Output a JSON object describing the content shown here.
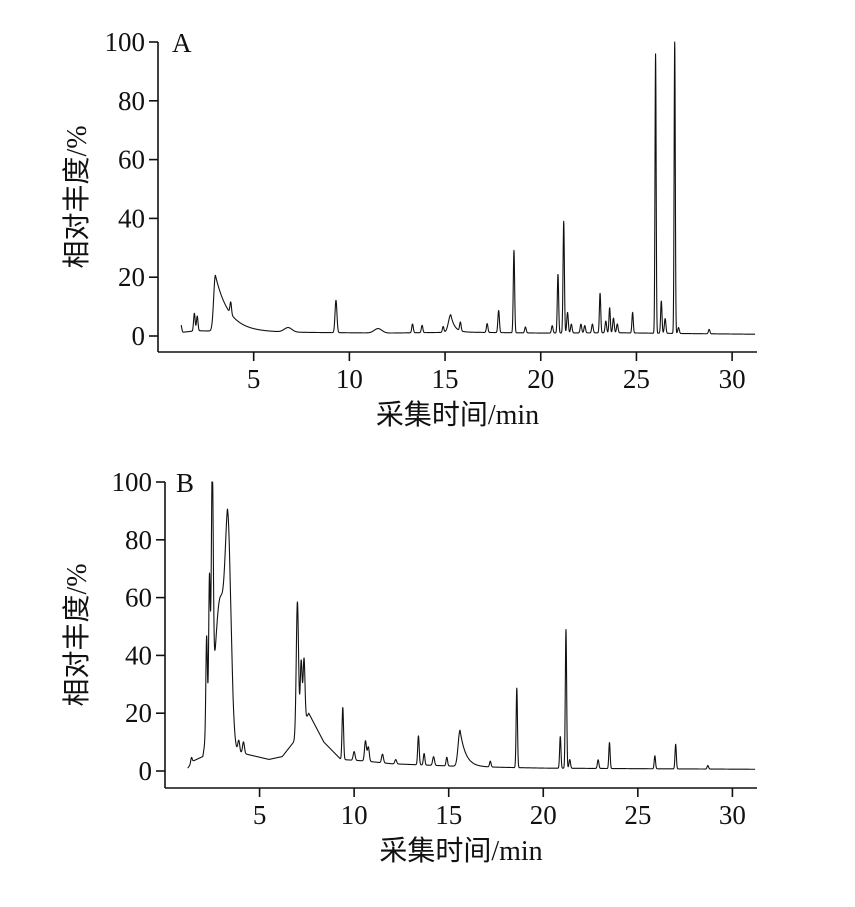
{
  "chart_data": [
    {
      "type": "line",
      "panel_label": "A",
      "xlabel": "采集时间/min",
      "ylabel": "相对丰度/%",
      "xlim": [
        0,
        31.3
      ],
      "ylim": [
        0,
        100
      ],
      "x_ticks": [
        5,
        10,
        15,
        20,
        25,
        30
      ],
      "y_ticks": [
        0,
        20,
        40,
        60,
        80,
        100
      ],
      "baseline": [
        [
          1.2,
          1.2
        ],
        [
          2.0,
          1.8
        ],
        [
          4.0,
          1.5
        ],
        [
          8.0,
          1.2
        ],
        [
          12.0,
          1.0
        ],
        [
          16.0,
          1.3
        ],
        [
          20.0,
          1.0
        ],
        [
          24.0,
          1.1
        ],
        [
          28.0,
          0.8
        ],
        [
          31.2,
          0.6
        ]
      ],
      "peaks": [
        {
          "x": 1.2,
          "y": 2.5,
          "w": 0.04
        },
        {
          "x": 1.9,
          "y": 6,
          "w": 0.04
        },
        {
          "x": 2.05,
          "y": 5,
          "w": 0.04
        },
        {
          "x": 3.0,
          "y": 19,
          "w": 0.09,
          "tail": 0.7
        },
        {
          "x": 3.8,
          "y": 4,
          "w": 0.04
        },
        {
          "x": 6.8,
          "y": 1.5,
          "w": 0.2
        },
        {
          "x": 9.3,
          "y": 11,
          "w": 0.05
        },
        {
          "x": 11.5,
          "y": 1.5,
          "w": 0.2
        },
        {
          "x": 13.3,
          "y": 3,
          "w": 0.04
        },
        {
          "x": 13.8,
          "y": 2.5,
          "w": 0.04
        },
        {
          "x": 14.9,
          "y": 2,
          "w": 0.04
        },
        {
          "x": 15.3,
          "y": 6,
          "w": 0.12,
          "tail": 0.2
        },
        {
          "x": 15.8,
          "y": 3,
          "w": 0.04
        },
        {
          "x": 17.2,
          "y": 3,
          "w": 0.04
        },
        {
          "x": 17.8,
          "y": 7.5,
          "w": 0.04
        },
        {
          "x": 18.6,
          "y": 28,
          "w": 0.035
        },
        {
          "x": 19.2,
          "y": 2,
          "w": 0.04
        },
        {
          "x": 20.6,
          "y": 2.5,
          "w": 0.04
        },
        {
          "x": 20.9,
          "y": 20,
          "w": 0.035
        },
        {
          "x": 21.2,
          "y": 38,
          "w": 0.035
        },
        {
          "x": 21.4,
          "y": 7,
          "w": 0.04
        },
        {
          "x": 21.6,
          "y": 3,
          "w": 0.04
        },
        {
          "x": 22.1,
          "y": 3,
          "w": 0.04
        },
        {
          "x": 22.3,
          "y": 2.5,
          "w": 0.04
        },
        {
          "x": 22.7,
          "y": 3,
          "w": 0.04
        },
        {
          "x": 23.1,
          "y": 13.5,
          "w": 0.035
        },
        {
          "x": 23.4,
          "y": 4,
          "w": 0.04
        },
        {
          "x": 23.6,
          "y": 8.5,
          "w": 0.035
        },
        {
          "x": 23.8,
          "y": 5,
          "w": 0.04
        },
        {
          "x": 24.0,
          "y": 3,
          "w": 0.04
        },
        {
          "x": 24.8,
          "y": 7,
          "w": 0.035
        },
        {
          "x": 26.0,
          "y": 95,
          "w": 0.03
        },
        {
          "x": 26.3,
          "y": 11,
          "w": 0.035
        },
        {
          "x": 26.5,
          "y": 5,
          "w": 0.04
        },
        {
          "x": 27.0,
          "y": 100,
          "w": 0.03
        },
        {
          "x": 27.2,
          "y": 2,
          "w": 0.04
        },
        {
          "x": 28.8,
          "y": 1.5,
          "w": 0.04
        }
      ]
    },
    {
      "type": "line",
      "panel_label": "B",
      "xlabel": "采集时间/min",
      "ylabel": "相对丰度/%",
      "xlim": [
        0,
        31.3
      ],
      "ylim": [
        0,
        100
      ],
      "x_ticks": [
        5,
        10,
        15,
        20,
        25,
        30
      ],
      "y_ticks": [
        0,
        20,
        40,
        60,
        80,
        100
      ],
      "baseline": [
        [
          1.2,
          1.0
        ],
        [
          1.5,
          3.5
        ],
        [
          2.0,
          5.0
        ],
        [
          2.4,
          22
        ],
        [
          3.3,
          25
        ],
        [
          3.45,
          12
        ],
        [
          3.6,
          7
        ],
        [
          4.2,
          6
        ],
        [
          5.5,
          4
        ],
        [
          6.2,
          5
        ],
        [
          6.8,
          10
        ],
        [
          7.6,
          20
        ],
        [
          8.4,
          10
        ],
        [
          9.3,
          4
        ],
        [
          10.5,
          3.5
        ],
        [
          12.0,
          2.5
        ],
        [
          14.0,
          2.0
        ],
        [
          16.0,
          1.5
        ],
        [
          20.0,
          1.0
        ],
        [
          25.0,
          0.8
        ],
        [
          31.2,
          0.6
        ]
      ],
      "peaks": [
        {
          "x": 1.4,
          "y": 2,
          "w": 0.04
        },
        {
          "x": 2.2,
          "y": 33,
          "w": 0.04
        },
        {
          "x": 2.35,
          "y": 46,
          "w": 0.04
        },
        {
          "x": 2.5,
          "y": 78,
          "w": 0.05
        },
        {
          "x": 2.9,
          "y": 35,
          "w": 0.22
        },
        {
          "x": 3.35,
          "y": 62,
          "w": 0.16
        },
        {
          "x": 3.9,
          "y": 4,
          "w": 0.05
        },
        {
          "x": 4.15,
          "y": 4,
          "w": 0.05
        },
        {
          "x": 7.0,
          "y": 46,
          "w": 0.06
        },
        {
          "x": 7.2,
          "y": 23,
          "w": 0.05
        },
        {
          "x": 7.35,
          "y": 22,
          "w": 0.05
        },
        {
          "x": 9.4,
          "y": 18,
          "w": 0.04
        },
        {
          "x": 10.0,
          "y": 3,
          "w": 0.05
        },
        {
          "x": 10.6,
          "y": 7,
          "w": 0.05
        },
        {
          "x": 10.75,
          "y": 5,
          "w": 0.05
        },
        {
          "x": 11.5,
          "y": 3,
          "w": 0.05
        },
        {
          "x": 12.2,
          "y": 1.5,
          "w": 0.05
        },
        {
          "x": 13.4,
          "y": 10,
          "w": 0.04
        },
        {
          "x": 13.7,
          "y": 4,
          "w": 0.04
        },
        {
          "x": 14.2,
          "y": 3,
          "w": 0.05
        },
        {
          "x": 14.9,
          "y": 3,
          "w": 0.04
        },
        {
          "x": 15.6,
          "y": 12.5,
          "w": 0.1,
          "tail": 0.3
        },
        {
          "x": 17.2,
          "y": 2,
          "w": 0.04
        },
        {
          "x": 18.6,
          "y": 27.5,
          "w": 0.035
        },
        {
          "x": 20.9,
          "y": 11,
          "w": 0.035
        },
        {
          "x": 21.2,
          "y": 48,
          "w": 0.035
        },
        {
          "x": 21.4,
          "y": 3,
          "w": 0.04
        },
        {
          "x": 22.9,
          "y": 3,
          "w": 0.04
        },
        {
          "x": 23.5,
          "y": 9,
          "w": 0.035
        },
        {
          "x": 25.9,
          "y": 4.5,
          "w": 0.035
        },
        {
          "x": 27.0,
          "y": 8.5,
          "w": 0.035
        },
        {
          "x": 28.7,
          "y": 1.2,
          "w": 0.04
        }
      ]
    }
  ]
}
